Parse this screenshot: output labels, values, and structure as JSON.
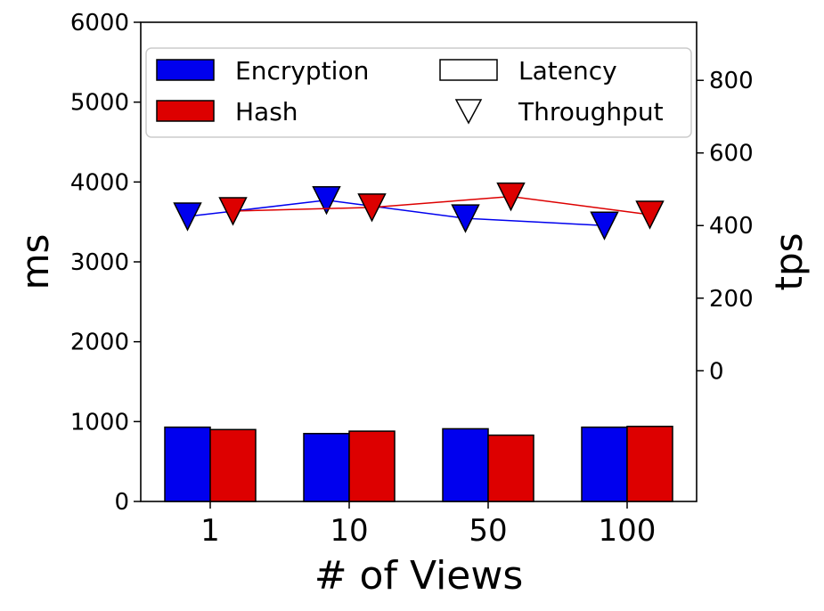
{
  "chart_data": {
    "type": "bar",
    "categories": [
      "1",
      "10",
      "50",
      "100"
    ],
    "xlabel": "# of Views",
    "ylabel": "ms",
    "ylabel_right": "tps",
    "ylim": [
      0,
      6000
    ],
    "yticks": [
      "0",
      "1000",
      "2000",
      "3000",
      "4000",
      "5000",
      "6000"
    ],
    "ylim_right": [
      -360,
      960
    ],
    "yticks_right": [
      "0",
      "200",
      "400",
      "600",
      "800"
    ],
    "legend_position": "top",
    "legend": {
      "encryption": "Encryption",
      "hash": "Hash",
      "latency": "Latency",
      "throughput": "Throughput"
    },
    "series": [
      {
        "name": "Encryption",
        "metric": "Latency",
        "color": "#0000ee",
        "values": [
          930,
          850,
          910,
          930
        ]
      },
      {
        "name": "Hash",
        "metric": "Latency",
        "color": "#dd0000",
        "values": [
          900,
          880,
          830,
          940
        ]
      },
      {
        "name": "Encryption",
        "metric": "Throughput",
        "color": "#0000ee",
        "values": [
          425,
          470,
          420,
          400
        ]
      },
      {
        "name": "Hash",
        "metric": "Throughput",
        "color": "#dd0000",
        "values": [
          440,
          450,
          480,
          430
        ]
      }
    ],
    "grid": false
  }
}
